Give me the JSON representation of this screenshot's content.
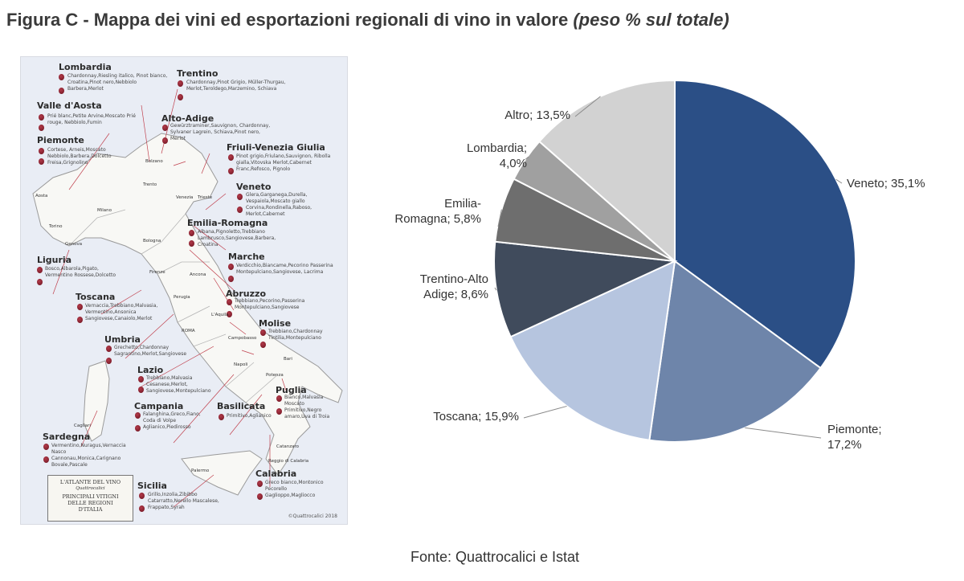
{
  "title": {
    "main": "Figura C - Mappa dei vini ed esportazioni regionali di vino in valore ",
    "italic": "(peso % sul totale)"
  },
  "map": {
    "regions": [
      {
        "name": "Lombardia",
        "vines": "Chardonnay,Riesling italico, Pinot bianco, Croatina,Pinot nero,Nebbiolo Barbera,Merlot"
      },
      {
        "name": "Trentino",
        "vines": "Chardonnay,Pinot Grigio, Müller-Thurgau, Merlot,Teroldego,Marzemino, Schiava"
      },
      {
        "name": "Valle d'Aosta",
        "vines": "Prié blanc,Petite Arvine,Moscato Prié rouge, Nebbiolo,Fumin"
      },
      {
        "name": "Alto-Adige",
        "vines": "Gewürztraminer,Sauvignon, Chardonnay, Sylvaner Lagrein, Schiava,Pinot nero, Merlot"
      },
      {
        "name": "Piemonte",
        "vines": "Cortese, Arneis,Moscato Nebbiolo,Barbera,Dolcetto Freisa,Grignolino"
      },
      {
        "name": "Friuli-Venezia Giulia",
        "vines": "Pinot grigio,Friulano,Sauvignon, Ribolla gialla,Vitovska Merlot,Cabernet Franc,Refosco, Pignolo"
      },
      {
        "name": "Veneto",
        "vines": "Glera,Garganega,Durella, Vespaiola,Moscato giallo Corvina,Rondinella,Raboso, Merlot,Cabernet"
      },
      {
        "name": "Emilia-Romagna",
        "vines": "Albana,Pignoletto,Trebbiano Lambrusco,Sangiovese,Barbera, Croatina"
      },
      {
        "name": "Liguria",
        "vines": "Bosco,Albarola,Pigato, Vermentino Rossese,Dolcetto"
      },
      {
        "name": "Marche",
        "vines": "Verdicchio,Biancame,Pecorino Passerina Montepulciano,Sangiovese, Lacrima"
      },
      {
        "name": "Toscana",
        "vines": "Vernaccia,Trebbiano,Malvasia, Vermentino,Ansonica Sangiovese,Canaiolo,Merlot"
      },
      {
        "name": "Abruzzo",
        "vines": "Trebbiano,Pecorino,Passerina Montepulciano,Sangiovese"
      },
      {
        "name": "Umbria",
        "vines": "Grechetto,Chardonnay Sagrantino,Merlot,Sangiovese"
      },
      {
        "name": "Molise",
        "vines": "Trebbiano,Chardonnay Tintilia,Montepulciano"
      },
      {
        "name": "Lazio",
        "vines": "Trebbiano,Malvasia Cesanese,Merlot, Sangiovese,Montepulciano"
      },
      {
        "name": "Puglia",
        "vines": "Bianco,Malvasia Moscato Primitivo,Negro amaro,Uva di Troia"
      },
      {
        "name": "Campania",
        "vines": "Falanghina,Greco,Fiano, Coda di Volpe Aglianico,Piedirosso"
      },
      {
        "name": "Basilicata",
        "vines": "Primitivo,Aglianico"
      },
      {
        "name": "Sardegna",
        "vines": "Vermentino,Nuragus,Vernaccia Nasco Cannonau,Monica,Carignano Bovale,Pascale"
      },
      {
        "name": "Calabria",
        "vines": "Greco bianco,Montonico Pecorello Gaglioppo,Magliocco"
      },
      {
        "name": "Sicilia",
        "vines": "Grillo,Inzolia,Zibibbo Catarratto,Nerello Mascalese, Frappato,Syrah"
      }
    ],
    "cities": [
      "Aosta",
      "Torino",
      "Genova",
      "Milano",
      "Trento",
      "Bolzano",
      "Venezia",
      "Trieste",
      "Bologna",
      "Firenze",
      "Ancona",
      "Perugia",
      "L'Aquila",
      "ROMA",
      "Campobasso",
      "Napoli",
      "Potenza",
      "Bari",
      "Cagliari",
      "Palermo",
      "Catanzaro",
      "Reggio di Calabria"
    ],
    "atlas": {
      "line1": "L'ATLANTE DEL VINO",
      "line2": "Quattrocalici",
      "line3": "PRINCIPALI VITIGNI",
      "line4": "DELLE REGIONI",
      "line5": "D'ITALIA"
    },
    "credit": "©Quattrocalici 2018"
  },
  "chart_data": {
    "type": "pie",
    "slices": [
      {
        "label": "Veneto",
        "value": 35.1,
        "text": "Veneto; 35,1%",
        "color": "#2b4f86"
      },
      {
        "label": "Piemonte",
        "value": 17.2,
        "text": "Piemonte; 17,2%",
        "color": "#6e85aa"
      },
      {
        "label": "Toscana",
        "value": 15.9,
        "text": "Toscana; 15,9%",
        "color": "#b6c5df"
      },
      {
        "label": "Trentino-Alto Adige",
        "value": 8.6,
        "text": "Trentino-Alto Adige; 8,6%",
        "color": "#404b5c"
      },
      {
        "label": "Emilia-Romagna",
        "value": 5.8,
        "text": "Emilia-Romagna; 5,8%",
        "color": "#6e6e6e"
      },
      {
        "label": "Lombardia",
        "value": 4.0,
        "text": "Lombardia; 4,0%",
        "color": "#a0a0a0"
      },
      {
        "label": "Altro",
        "value": 13.5,
        "text": "Altro; 13,5%",
        "color": "#d2d2d2"
      }
    ],
    "label_lines": [
      [
        "Veneto; 35,1%"
      ],
      [
        "Piemonte;",
        "17,2%"
      ],
      [
        "Toscana; 15,9%"
      ],
      [
        "Trentino-Alto",
        "Adige; 8,6%"
      ],
      [
        "Emilia-",
        "Romagna; 5,8%"
      ],
      [
        "Lombardia;",
        "4,0%"
      ],
      [
        "Altro; 13,5%"
      ]
    ]
  },
  "source": "Fonte: Quattrocalici e Istat"
}
